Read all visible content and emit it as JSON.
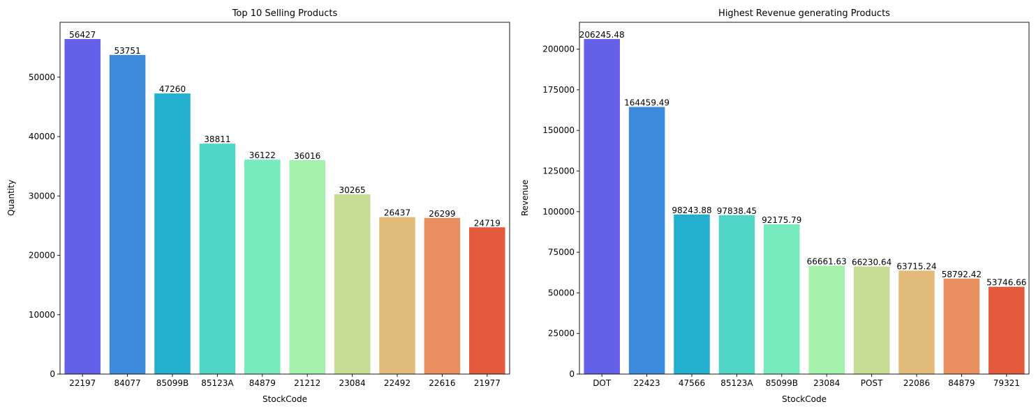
{
  "colors": [
    "#6460ea",
    "#3e8bdc",
    "#22afcf",
    "#50d4c5",
    "#78ecbf",
    "#a5f0ab",
    "#c5dd94",
    "#e3bb79",
    "#e98e5f",
    "#e35a3d"
  ],
  "chart_data": [
    {
      "type": "bar",
      "title": "Top 10 Selling Products",
      "xlabel": "StockCode",
      "ylabel": "Quantity",
      "categories": [
        "22197",
        "84077",
        "85099B",
        "85123A",
        "84879",
        "21212",
        "23084",
        "22492",
        "22616",
        "21977"
      ],
      "values": [
        56427,
        53751,
        47260,
        38811,
        36122,
        36016,
        30265,
        26437,
        26299,
        24719
      ],
      "data_labels": [
        "56427",
        "53751",
        "47260",
        "38811",
        "36122",
        "36016",
        "30265",
        "26437",
        "26299",
        "24719"
      ],
      "ylim": [
        0,
        59248
      ],
      "yticks": [
        0,
        10000,
        20000,
        30000,
        40000,
        50000
      ],
      "grid": false,
      "legend": "none"
    },
    {
      "type": "bar",
      "title": "Highest Revenue generating Products",
      "xlabel": "StockCode",
      "ylabel": "Revenue",
      "categories": [
        "DOT",
        "22423",
        "47566",
        "85123A",
        "85099B",
        "23084",
        "POST",
        "22086",
        "84879",
        "79321"
      ],
      "values": [
        206245.48,
        164459.49,
        98243.88,
        97838.45,
        92175.79,
        66661.63,
        66230.64,
        63715.24,
        58792.42,
        53746.66
      ],
      "data_labels": [
        "206245.48",
        "164459.49",
        "98243.88",
        "97838.45",
        "92175.79",
        "66661.63",
        "66230.64",
        "63715.24",
        "58792.42",
        "53746.66"
      ],
      "ylim": [
        0,
        216558
      ],
      "yticks": [
        0,
        25000,
        50000,
        75000,
        100000,
        125000,
        150000,
        175000,
        200000
      ],
      "grid": false,
      "legend": "none"
    }
  ]
}
